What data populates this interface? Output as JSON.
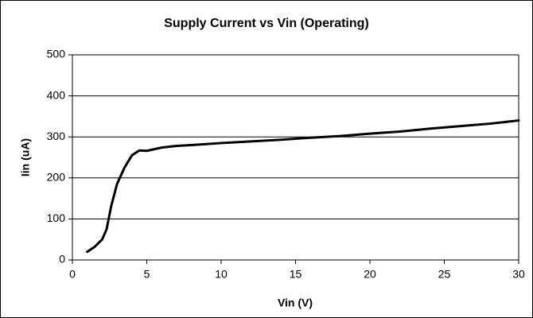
{
  "chart_data": {
    "type": "line",
    "title": "Supply Current vs Vin (Operating)",
    "x_label": "Vin (V)",
    "y_label": "Iin (uA)",
    "x": [
      1,
      1.5,
      2,
      2.3,
      2.6,
      3,
      3.5,
      4,
      4.5,
      5,
      6,
      7,
      8,
      10,
      12,
      14,
      16,
      18,
      20,
      22,
      24,
      26,
      28,
      30
    ],
    "series": [
      {
        "name": "Iin",
        "color": "#000000",
        "values": [
          20,
          32,
          50,
          75,
          130,
          185,
          225,
          255,
          267,
          266,
          274,
          278,
          280,
          285,
          289,
          293,
          298,
          302,
          308,
          313,
          320,
          326,
          332,
          340
        ]
      }
    ],
    "xlim": [
      0,
      30
    ],
    "xticks": [
      0,
      5,
      10,
      15,
      20,
      25,
      30
    ],
    "ylim": [
      0,
      500
    ],
    "yticks": [
      0,
      100,
      200,
      300,
      400,
      500
    ],
    "grid": true
  }
}
